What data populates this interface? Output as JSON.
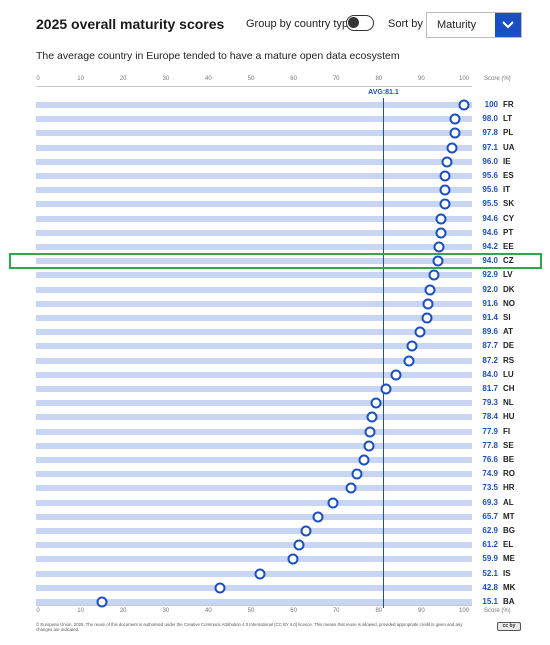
{
  "header": {
    "title": "2025 overall maturity scores",
    "group_label": "Group by country type",
    "sort_label": "Sort by",
    "sort_value": "Maturity",
    "subtitle": "The average country in Europe tended to have a mature open data ecosystem"
  },
  "highlight_country": "CZ",
  "colors": {
    "accent": "#1a4fc4",
    "bar": "#c9d6f3",
    "highlight": "#2ea84d"
  },
  "icons": {
    "dropdown": "chevron-down-icon",
    "toggle": "toggle-switch-icon",
    "license": "cc-by-icon"
  },
  "chart_data": {
    "type": "scatter",
    "title": "2025 overall maturity scores",
    "xlabel": "Score (%)",
    "xlim": [
      0,
      100
    ],
    "x_ticks": [
      0,
      10,
      20,
      30,
      40,
      50,
      60,
      70,
      80,
      90,
      100
    ],
    "average": {
      "label": "AVG:81.1",
      "value": 81.1
    },
    "countries": [
      "FR",
      "LT",
      "PL",
      "UA",
      "IE",
      "ES",
      "IT",
      "SK",
      "CY",
      "PT",
      "EE",
      "CZ",
      "LV",
      "DK",
      "NO",
      "SI",
      "AT",
      "DE",
      "RS",
      "LU",
      "CH",
      "NL",
      "HU",
      "FI",
      "SE",
      "BE",
      "RO",
      "HR",
      "AL",
      "MT",
      "BG",
      "EL",
      "ME",
      "IS",
      "MK",
      "BA"
    ],
    "values": [
      100,
      98.0,
      97.8,
      97.1,
      96.0,
      95.6,
      95.6,
      95.5,
      94.6,
      94.6,
      94.2,
      94.0,
      92.9,
      92.0,
      91.6,
      91.4,
      89.6,
      87.7,
      87.2,
      84.0,
      81.7,
      79.3,
      78.4,
      77.9,
      77.8,
      76.6,
      74.9,
      73.5,
      69.3,
      65.7,
      62.9,
      61.2,
      59.9,
      52.1,
      42.8,
      15.1
    ],
    "value_labels": [
      "100",
      "98.0",
      "97.8",
      "97.1",
      "96.0",
      "95.6",
      "95.6",
      "95.5",
      "94.6",
      "94.6",
      "94.2",
      "94.0",
      "92.9",
      "92.0",
      "91.6",
      "91.4",
      "89.6",
      "87.7",
      "87.2",
      "84.0",
      "81.7",
      "79.3",
      "78.4",
      "77.9",
      "77.8",
      "76.6",
      "74.9",
      "73.5",
      "69.3",
      "65.7",
      "62.9",
      "61.2",
      "59.9",
      "52.1",
      "42.8",
      "15.1"
    ]
  },
  "footer": {
    "text": "© European Union, 2025. The reuse of this document is authorised under the Creative Commons Attribution 4.0 International (CC BY 4.0) licence. This means that reuse is allowed, provided appropriate credit is given and any changes are indicated.",
    "license_badge": "cc by"
  }
}
